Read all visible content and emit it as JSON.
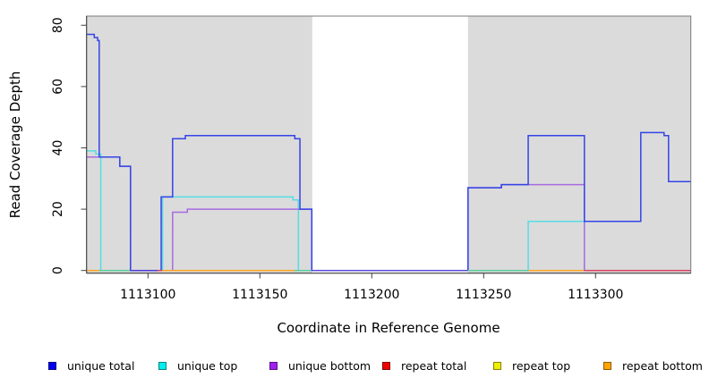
{
  "figure": {
    "x_title": "Coordinate in Reference Genome",
    "y_title": "Read Coverage Depth"
  },
  "chart_data": {
    "type": "line",
    "step": "after",
    "title": "",
    "xlabel": "Coordinate in Reference Genome",
    "ylabel": "Read Coverage Depth",
    "x_axis": {
      "range": [
        1113072.6,
        1113342.6
      ],
      "ticks": [
        1113100,
        1113150,
        1113200,
        1113250,
        1113300
      ]
    },
    "y_axis": {
      "range": [
        0,
        83
      ],
      "ticks": [
        0,
        20,
        40,
        60,
        80
      ]
    },
    "grid": false,
    "legend_position": "bottom",
    "plot_background": "#ffffff",
    "shaded_regions": [
      {
        "name": "repeat-region-left",
        "x0": 1113072.6,
        "x1": 1113173.4,
        "color": "#dbdbdb"
      },
      {
        "name": "repeat-region-right",
        "x0": 1113243.0,
        "x1": 1113342.6,
        "color": "#dbdbdb"
      }
    ],
    "series": [
      {
        "name": "repeat top",
        "color": "#f0e800",
        "points": [
          [
            1113072.6,
            0
          ],
          [
            1113342.6,
            0
          ]
        ]
      },
      {
        "name": "repeat total",
        "color": "#e03030",
        "points": [
          [
            1113072.6,
            0
          ],
          [
            1113342.6,
            0
          ]
        ]
      },
      {
        "name": "repeat bottom",
        "color": "#ffa520",
        "points": [
          [
            1113072.6,
            0
          ],
          [
            1113342.6,
            0
          ]
        ]
      },
      {
        "name": "unique top",
        "color": "#55dde4",
        "points": [
          [
            1113072.6,
            39
          ],
          [
            1113076.7,
            38
          ],
          [
            1113078.9,
            0
          ],
          [
            1113106.5,
            24
          ],
          [
            1113164.8,
            23
          ],
          [
            1113167.2,
            0
          ],
          [
            1113269.9,
            16
          ],
          [
            1113295.0,
            0
          ],
          [
            1113342.6,
            0
          ]
        ]
      },
      {
        "name": "unique bottom",
        "color": "#a86be0",
        "points": [
          [
            1113072.6,
            37
          ],
          [
            1113087.4,
            34
          ],
          [
            1113092.2,
            0
          ],
          [
            1113111.0,
            19
          ],
          [
            1113117.6,
            20
          ],
          [
            1113173.2,
            0
          ],
          [
            1113243.0,
            27
          ],
          [
            1113257.9,
            28
          ],
          [
            1113295.0,
            0
          ],
          [
            1113342.6,
            0
          ]
        ]
      },
      {
        "name": "unique total",
        "color": "#3344e6",
        "points": [
          [
            1113072.6,
            77
          ],
          [
            1113076.0,
            76
          ],
          [
            1113077.5,
            75
          ],
          [
            1113078.2,
            37
          ],
          [
            1113087.4,
            34
          ],
          [
            1113092.2,
            0
          ],
          [
            1113105.9,
            24
          ],
          [
            1113111.0,
            43
          ],
          [
            1113116.7,
            44
          ],
          [
            1113165.6,
            43
          ],
          [
            1113167.9,
            20
          ],
          [
            1113173.2,
            0
          ],
          [
            1113243.0,
            27
          ],
          [
            1113257.9,
            28
          ],
          [
            1113269.9,
            44
          ],
          [
            1113295.0,
            16
          ],
          [
            1113320.2,
            45
          ],
          [
            1113330.6,
            44
          ],
          [
            1113332.6,
            29
          ],
          [
            1113342.6,
            29
          ]
        ]
      }
    ],
    "baseline_segments": [
      {
        "x0": 1113072.6,
        "x1": 1113078.2,
        "color": "#ffa520"
      },
      {
        "x0": 1113078.2,
        "x1": 1113092.0,
        "color": "#57cd9b"
      },
      {
        "x0": 1113092.0,
        "x1": 1113104.3,
        "color": "#4a3bd9"
      },
      {
        "x0": 1113104.3,
        "x1": 1113106.4,
        "color": "#d94060"
      },
      {
        "x0": 1113106.4,
        "x1": 1113165.5,
        "color": "#ffa520"
      },
      {
        "x0": 1113165.5,
        "x1": 1113173.0,
        "color": "#57cd9b"
      },
      {
        "x0": 1113173.0,
        "x1": 1113243.0,
        "color": "#5b47dc"
      },
      {
        "x0": 1113243.0,
        "x1": 1113270.0,
        "color": "#57cd9b"
      },
      {
        "x0": 1113270.0,
        "x1": 1113294.8,
        "color": "#ffa520"
      },
      {
        "x0": 1113294.8,
        "x1": 1113342.6,
        "color": "#d94060"
      }
    ],
    "legend": [
      {
        "label": "unique total",
        "color": "#0000ee"
      },
      {
        "label": "unique top",
        "color": "#00eeee"
      },
      {
        "label": "unique bottom",
        "color": "#a020f0"
      },
      {
        "label": "repeat total",
        "color": "#ee0000"
      },
      {
        "label": "repeat top",
        "color": "#eeee00"
      },
      {
        "label": "repeat bottom",
        "color": "#ffa500"
      }
    ]
  }
}
